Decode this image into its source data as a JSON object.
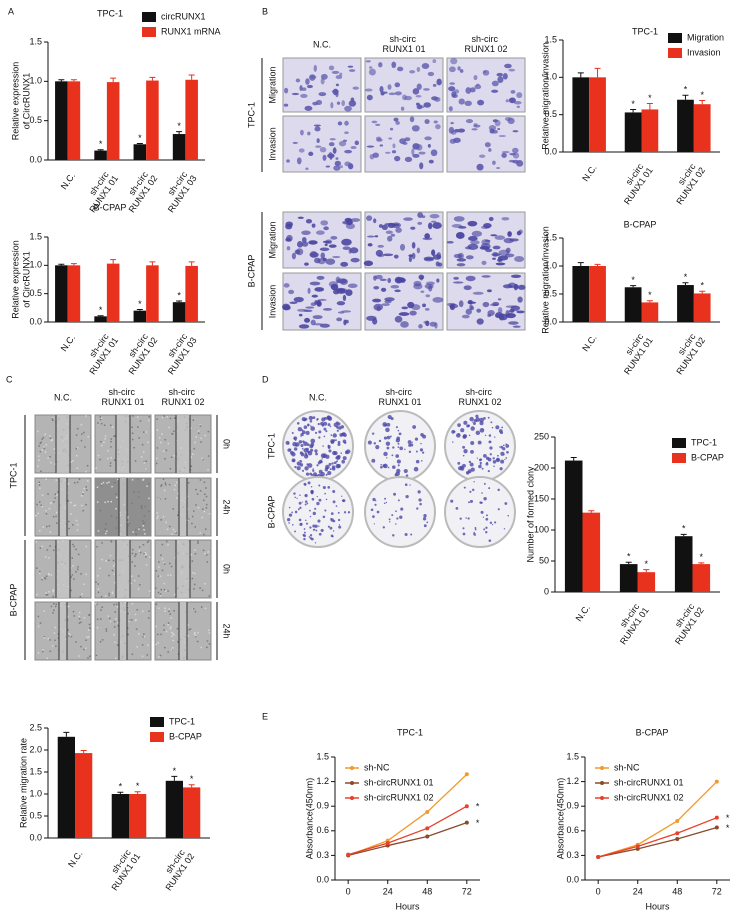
{
  "figure": {
    "panels": [
      "A",
      "B",
      "C",
      "D",
      "E"
    ],
    "B": {
      "columns": [
        "N.C.",
        "sh-circ RUNX1 01",
        "sh-circ RUNX1 02"
      ],
      "rows": [
        "TPC-1",
        "B-CPAP"
      ],
      "assays": [
        "Migration",
        "Invasion"
      ]
    },
    "C": {
      "columns": [
        "N.C.",
        "sh-circ RUNX1 01",
        "sh-circ RUNX1 02"
      ],
      "rows": [
        "TPC-1",
        "B-CPAP"
      ],
      "times": [
        "0h",
        "24h"
      ]
    },
    "D": {
      "columns": [
        "N.C.",
        "sh-circ RUNX1 01",
        "sh-circ RUNX1 02"
      ],
      "rows": [
        "TPC-1",
        "B-CPAP"
      ]
    }
  },
  "chart_data": [
    {
      "type": "bar",
      "title": "TPC-1",
      "ylabel": [
        "Relative expression",
        "of CircRUNX1"
      ],
      "categories": [
        "N.C.",
        "sh-circ RUNX1 01",
        "sh-circ RUNX1 02",
        "sh-circ RUNX1 03"
      ],
      "series": [
        {
          "name": "circRUNX1",
          "color": "#111111",
          "values": [
            1.0,
            0.12,
            0.2,
            0.33
          ],
          "errors": [
            0.02,
            0.01,
            0.01,
            0.03
          ],
          "sig": [
            null,
            "*",
            "*",
            "*"
          ]
        },
        {
          "name": "RUNX1 mRNA",
          "color": "#e8321e",
          "values": [
            1.0,
            0.99,
            1.01,
            1.02
          ],
          "errors": [
            0.02,
            0.05,
            0.04,
            0.06
          ]
        }
      ],
      "ylim": [
        0,
        1.5
      ],
      "yticks": [
        {
          "value": 0,
          "label": "0.0"
        },
        0.5,
        {
          "value": 1,
          "label": "1.0"
        },
        1.5
      ],
      "legend": "upper right"
    },
    {
      "type": "bar",
      "title": "B-CPAP",
      "ylabel": [
        "Relative expression",
        "of CircRUNX1"
      ],
      "categories": [
        "N.C.",
        "sh-circ RUNX1 01",
        "sh-circ RUNX1 02",
        "sh-circ RUNX1 03"
      ],
      "series": [
        {
          "name": "circRUNX1",
          "color": "#111111",
          "values": [
            1.0,
            0.1,
            0.2,
            0.35
          ],
          "errors": [
            0.02,
            0.01,
            0.02,
            0.02
          ],
          "sig": [
            null,
            "*",
            "*",
            "*"
          ]
        },
        {
          "name": "RUNX1 mRNA",
          "color": "#e8321e",
          "values": [
            1.0,
            1.03,
            1.0,
            0.99
          ],
          "errors": [
            0.03,
            0.07,
            0.06,
            0.07
          ]
        }
      ],
      "ylim": [
        0,
        1.5
      ],
      "yticks": [
        {
          "value": 0,
          "label": "0.0"
        },
        0.5,
        {
          "value": 1,
          "label": "1.0"
        },
        1.5
      ]
    },
    {
      "type": "bar",
      "title": "TPC-1",
      "ylabel": [
        "Relative migration/invasion"
      ],
      "categories": [
        "N.C.",
        "si-circ RUNX1 01",
        "si-circ RUNX1 02"
      ],
      "series": [
        {
          "name": "Migration",
          "color": "#111111",
          "values": [
            1.0,
            0.53,
            0.7
          ],
          "errors": [
            0.06,
            0.04,
            0.06
          ],
          "sig": [
            null,
            "*",
            "*"
          ]
        },
        {
          "name": "Invasion",
          "color": "#e8321e",
          "values": [
            1.0,
            0.57,
            0.64
          ],
          "errors": [
            0.12,
            0.08,
            0.05
          ],
          "sig": [
            null,
            "*",
            "*"
          ]
        }
      ],
      "ylim": [
        0,
        1.5
      ],
      "yticks": [
        {
          "value": 0,
          "label": "0.0"
        },
        0.5,
        {
          "value": 1,
          "label": "1.0"
        },
        1.5
      ],
      "legend": "upper right"
    },
    {
      "type": "bar",
      "title": "B-CPAP",
      "ylabel": [
        "Relative migration/invasion"
      ],
      "categories": [
        "N.C.",
        "si-circ RUNX1 01",
        "si-circ RUNX1 02"
      ],
      "series": [
        {
          "name": "Migration",
          "color": "#111111",
          "values": [
            1.0,
            0.62,
            0.66
          ],
          "errors": [
            0.06,
            0.03,
            0.04
          ],
          "sig": [
            null,
            "*",
            "*"
          ]
        },
        {
          "name": "Invasion",
          "color": "#e8321e",
          "values": [
            1.0,
            0.35,
            0.51
          ],
          "errors": [
            0.03,
            0.03,
            0.04
          ],
          "sig": [
            null,
            "*",
            "*"
          ]
        }
      ],
      "ylim": [
        0,
        1.5
      ],
      "yticks": [
        {
          "value": 0,
          "label": "0.0"
        },
        0.5,
        {
          "value": 1,
          "label": "1.0"
        },
        1.5
      ]
    },
    {
      "type": "bar",
      "ylabel": [
        "Relative migration rate"
      ],
      "categories": [
        "N.C.",
        "sh-circ RUNX1 01",
        "sh-circ RUNX1 02"
      ],
      "series": [
        {
          "name": "TPC-1",
          "color": "#111111",
          "values": [
            2.3,
            1.0,
            1.3
          ],
          "errors": [
            0.1,
            0.04,
            0.1
          ],
          "sig": [
            null,
            "*",
            "*"
          ]
        },
        {
          "name": "B-CPAP",
          "color": "#e8321e",
          "values": [
            1.93,
            1.0,
            1.15
          ],
          "errors": [
            0.06,
            0.05,
            0.06
          ],
          "sig": [
            null,
            "*",
            "*"
          ]
        }
      ],
      "ylim": [
        0,
        2.5
      ],
      "yticks": [
        {
          "value": 0,
          "label": "0.0"
        },
        0.5,
        {
          "value": 1,
          "label": "1.0"
        },
        1.5,
        {
          "value": 2,
          "label": "2.0"
        },
        2.5
      ],
      "legend": "upper right"
    },
    {
      "type": "bar",
      "ylabel": [
        "Number of formed clony"
      ],
      "categories": [
        "N.C.",
        "sh-circ RUNX1 01",
        "sh-circ RUNX1 02"
      ],
      "series": [
        {
          "name": "TPC-1",
          "color": "#111111",
          "values": [
            212,
            45,
            90
          ],
          "errors": [
            5,
            3,
            3
          ],
          "sig": [
            null,
            "*",
            "*"
          ]
        },
        {
          "name": "B-CPAP",
          "color": "#e8321e",
          "values": [
            128,
            32,
            45
          ],
          "errors": [
            3,
            4,
            2
          ],
          "sig": [
            null,
            "*",
            "*"
          ]
        }
      ],
      "ylim": [
        0,
        250
      ],
      "yticks": [
        0,
        50,
        100,
        150,
        200,
        250
      ],
      "legend": "upper right"
    },
    {
      "type": "line",
      "title": "TPC-1",
      "xlabel": "Hours",
      "ylabel": [
        "Absorbance(450nm)"
      ],
      "x": [
        0,
        24,
        48,
        72
      ],
      "series": [
        {
          "name": "sh-NC",
          "color": "#f39a2e",
          "values": [
            0.3,
            0.48,
            0.83,
            1.29
          ]
        },
        {
          "name": "sh-circRUNX1 01",
          "color": "#8b4a2b",
          "values": [
            0.3,
            0.42,
            0.53,
            0.7
          ],
          "sig": [
            null,
            null,
            null,
            "*"
          ]
        },
        {
          "name": "sh-circRUNX1 02",
          "color": "#e8402a",
          "values": [
            0.31,
            0.45,
            0.63,
            0.9
          ],
          "sig": [
            null,
            null,
            null,
            "*"
          ]
        }
      ],
      "xlim": [
        -8,
        80
      ],
      "xticks": [
        0,
        24,
        48,
        72
      ],
      "ylim": [
        0,
        1.5
      ],
      "yticks": [
        {
          "value": 0,
          "label": "0.0"
        },
        0.3,
        0.6,
        0.9,
        1.2,
        1.5
      ],
      "legend": "upper left"
    },
    {
      "type": "line",
      "title": "B-CPAP",
      "xlabel": "Hours",
      "ylabel": [
        "Absorbance(450nm)"
      ],
      "x": [
        0,
        24,
        48,
        72
      ],
      "series": [
        {
          "name": "sh-NC",
          "color": "#f39a2e",
          "values": [
            0.28,
            0.43,
            0.72,
            1.2
          ]
        },
        {
          "name": "sh-circRUNX1 01",
          "color": "#8b4a2b",
          "values": [
            0.28,
            0.38,
            0.5,
            0.64
          ],
          "sig": [
            null,
            null,
            null,
            "*"
          ]
        },
        {
          "name": "sh-circRUNX1 02",
          "color": "#e8402a",
          "values": [
            0.28,
            0.41,
            0.57,
            0.76
          ],
          "sig": [
            null,
            null,
            null,
            "*"
          ]
        }
      ],
      "xlim": [
        -8,
        80
      ],
      "xticks": [
        0,
        24,
        48,
        72
      ],
      "ylim": [
        0,
        1.5
      ],
      "yticks": [
        {
          "value": 0,
          "label": "0.0"
        },
        0.3,
        0.6,
        0.9,
        1.2,
        1.5
      ],
      "legend": "upper left"
    }
  ]
}
